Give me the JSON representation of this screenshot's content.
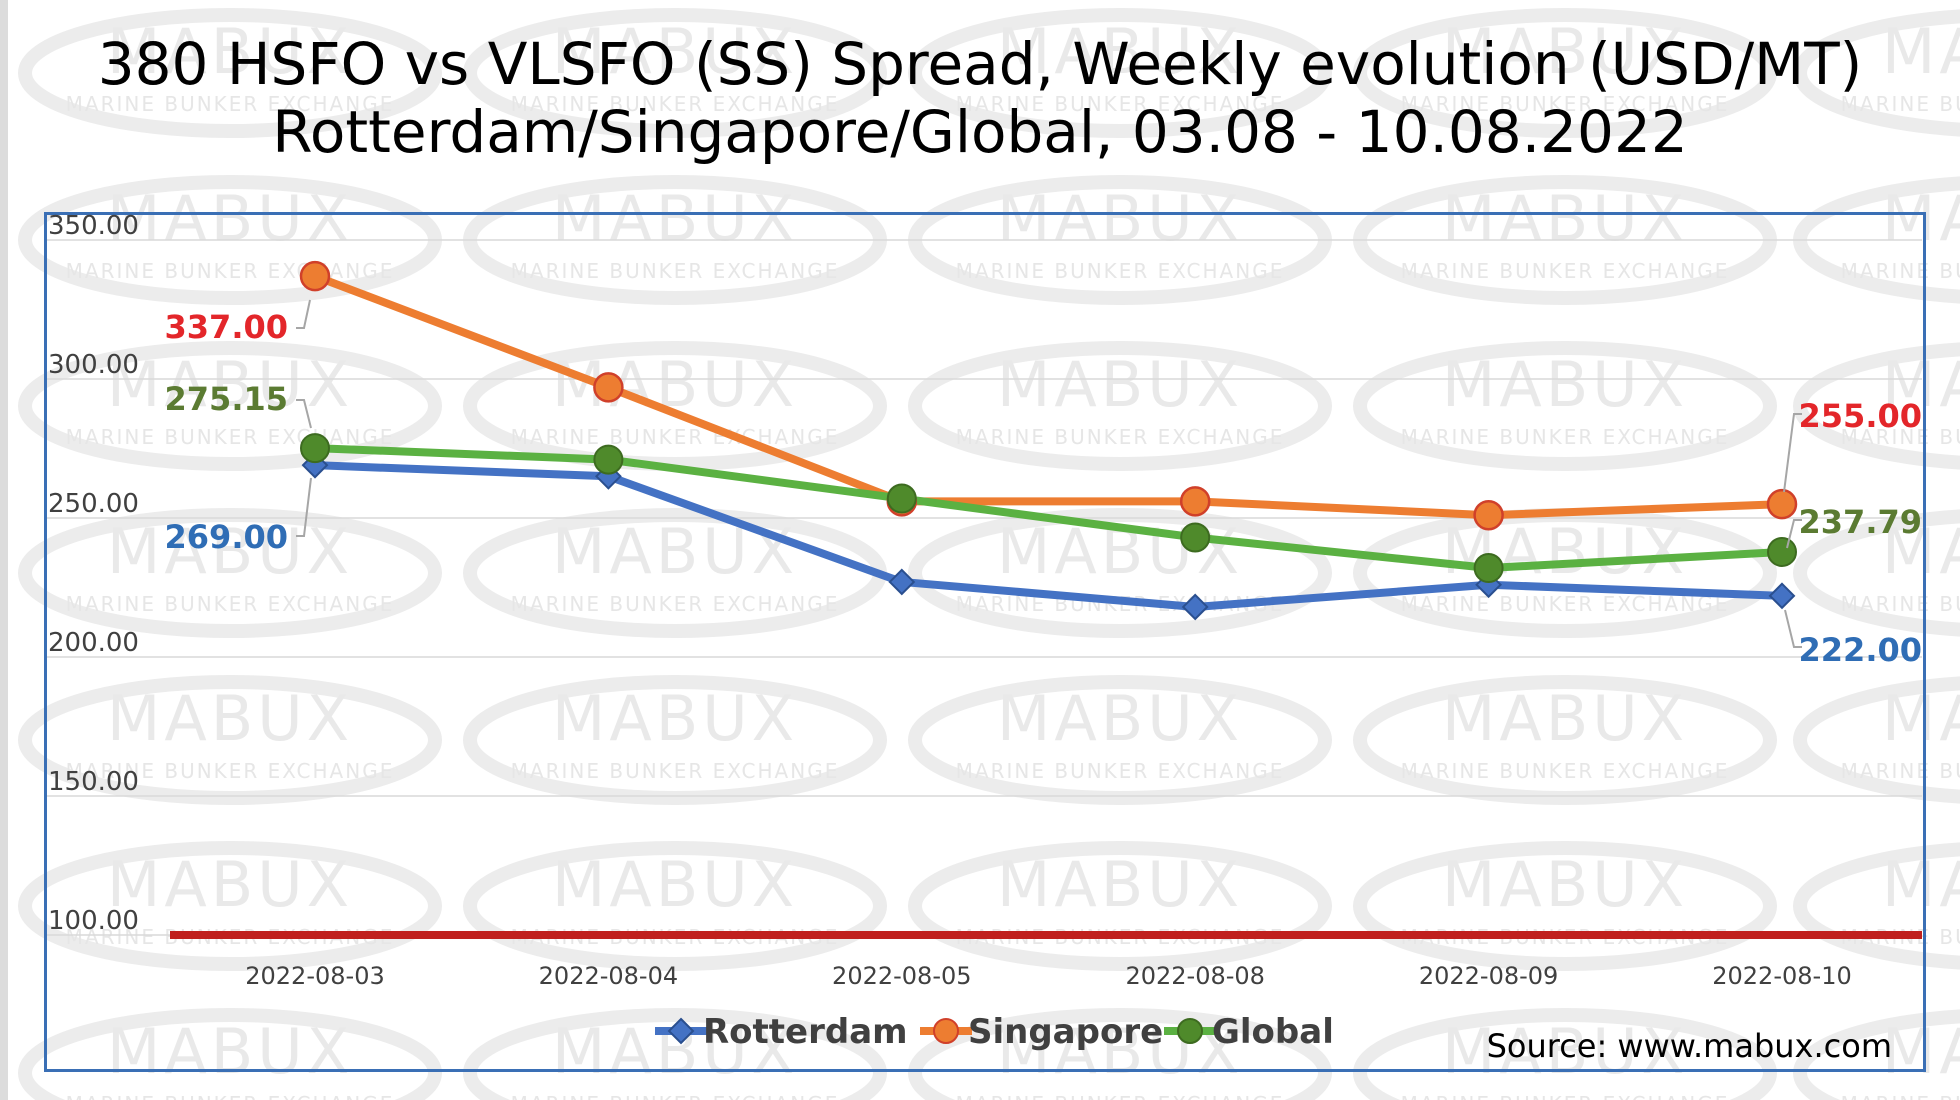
{
  "title_line1": "380 HSFO vs VLSFO (SS) Spread, Weekly evolution (USD/MT)",
  "title_line2": "Rotterdam/Singapore/Global, 03.08 - 10.08.2022",
  "source": "Source: www.mabux.com",
  "watermark": {
    "big": "MABUX",
    "small": "MARINE BUNKER EXCHANGE"
  },
  "colors": {
    "rotterdam": "#4472c4",
    "singapore": "#ed7d31",
    "global": "#5bb142",
    "global_marker": "#4f8a2b",
    "reference": "#c0201e",
    "label_red": "#e3262a",
    "label_blue": "#2f6db5",
    "label_green": "#5b7b32",
    "frame": "#3a6fb5",
    "grid": "#d9d9d9"
  },
  "chart_data": {
    "type": "line",
    "title": "380 HSFO vs VLSFO (SS) Spread, Weekly evolution (USD/MT) Rotterdam/Singapore/Global, 03.08 - 10.08.2022",
    "categories": [
      "2022-08-03",
      "2022-08-04",
      "2022-08-05",
      "2022-08-08",
      "2022-08-09",
      "2022-08-10"
    ],
    "y_ticks": [
      "100.00",
      "150.00",
      "200.00",
      "250.00",
      "300.00",
      "350.00"
    ],
    "ylim": [
      100,
      350
    ],
    "grid": true,
    "legend_position": "bottom",
    "reference_line": 100,
    "series": [
      {
        "name": "Rotterdam",
        "marker": "diamond",
        "values": [
          269,
          265,
          227,
          218,
          226,
          222
        ]
      },
      {
        "name": "Singapore",
        "marker": "circle",
        "values": [
          337,
          297,
          256,
          256,
          251,
          255
        ]
      },
      {
        "name": "Global",
        "marker": "circle",
        "values": [
          275.15,
          271,
          257,
          243,
          232,
          237.79
        ]
      }
    ],
    "data_labels": [
      {
        "series": "Singapore",
        "index": 0,
        "text": "337.00"
      },
      {
        "series": "Global",
        "index": 0,
        "text": "275.15"
      },
      {
        "series": "Rotterdam",
        "index": 0,
        "text": "269.00"
      },
      {
        "series": "Singapore",
        "index": 5,
        "text": "255.00"
      },
      {
        "series": "Global",
        "index": 5,
        "text": "237.79"
      },
      {
        "series": "Rotterdam",
        "index": 5,
        "text": "222.00"
      }
    ]
  }
}
